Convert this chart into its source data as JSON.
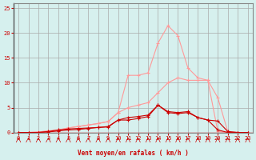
{
  "title": "",
  "xlabel": "Vent moyen/en rafales ( km/h )",
  "ylabel": "",
  "bg_color": "#d6f0ee",
  "grid_color": "#aaaaaa",
  "x_values": [
    0,
    1,
    2,
    3,
    4,
    5,
    6,
    7,
    8,
    9,
    10,
    11,
    12,
    13,
    14,
    15,
    16,
    17,
    18,
    19,
    20,
    21,
    22,
    23
  ],
  "line1_y": [
    0,
    0,
    0,
    0.2,
    0.5,
    0.7,
    0.8,
    0.9,
    1.0,
    1.1,
    2.5,
    2.5,
    2.8,
    3.2,
    5.5,
    4.2,
    4.0,
    4.2,
    3.0,
    2.5,
    0.5,
    0,
    0,
    0
  ],
  "line1_color": "#cc0000",
  "line2_y": [
    0,
    0,
    0,
    0.1,
    0.3,
    0.5,
    0.6,
    0.8,
    1.0,
    1.2,
    2.5,
    3.0,
    3.2,
    3.5,
    5.5,
    4.0,
    3.8,
    4.0,
    3.0,
    2.5,
    2.3,
    0.2,
    0,
    0
  ],
  "line2_color": "#cc0000",
  "line3_y": [
    0,
    0,
    0.1,
    0.3,
    0.5,
    0.9,
    1.2,
    1.5,
    1.8,
    2.2,
    4.0,
    11.5,
    11.5,
    12.0,
    18.0,
    21.5,
    19.5,
    13.0,
    11.0,
    10.5,
    0.2,
    0,
    0,
    0
  ],
  "line3_color": "#ff9999",
  "line4_y": [
    0,
    0,
    0.1,
    0.3,
    0.5,
    0.9,
    1.2,
    1.5,
    1.8,
    2.2,
    4.0,
    5.0,
    5.5,
    6.0,
    8.0,
    10.0,
    11.0,
    10.5,
    10.5,
    10.5,
    7.0,
    0.2,
    0,
    0
  ],
  "line4_color": "#ff9999",
  "ylim": [
    0,
    26
  ],
  "xlim": [
    0,
    23
  ],
  "yticks": [
    0,
    5,
    10,
    15,
    20,
    25
  ],
  "xticks": [
    0,
    1,
    2,
    3,
    4,
    5,
    6,
    7,
    8,
    9,
    10,
    11,
    12,
    13,
    14,
    15,
    16,
    17,
    18,
    19,
    20,
    21,
    22,
    23
  ],
  "arrow_color": "#cc0000",
  "marker": "+"
}
